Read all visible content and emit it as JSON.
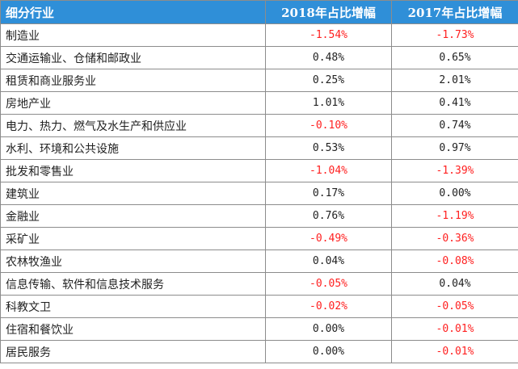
{
  "table": {
    "headers": [
      "细分行业",
      "2018年占比增幅",
      "2017年占比增幅"
    ],
    "rows": [
      [
        "制造业",
        "-1.54%",
        "-1.73%"
      ],
      [
        "交通运输业、仓储和邮政业",
        "0.48%",
        "0.65%"
      ],
      [
        "租赁和商业服务业",
        "0.25%",
        "2.01%"
      ],
      [
        "房地产业",
        "1.01%",
        "0.41%"
      ],
      [
        "电力、热力、燃气及水生产和供应业",
        "-0.10%",
        "0.74%"
      ],
      [
        "水利、环境和公共设施",
        "0.53%",
        "0.97%"
      ],
      [
        "批发和零售业",
        "-1.04%",
        "-1.39%"
      ],
      [
        "建筑业",
        "0.17%",
        "0.00%"
      ],
      [
        "金融业",
        "0.76%",
        "-1.19%"
      ],
      [
        "采矿业",
        "-0.49%",
        "-0.36%"
      ],
      [
        "农林牧渔业",
        "0.04%",
        "-0.08%"
      ],
      [
        "信息传输、软件和信息技术服务",
        "-0.05%",
        "0.04%"
      ],
      [
        "科教文卫",
        "-0.02%",
        "-0.05%"
      ],
      [
        "住宿和餐饮业",
        "0.00%",
        "-0.01%"
      ],
      [
        "居民服务",
        "0.00%",
        "-0.01%"
      ]
    ]
  },
  "colors": {
    "header_bg": "#2f8fd8",
    "header_text": "#ffffff",
    "negative": "#ff2020",
    "border": "#8c8c8c"
  }
}
